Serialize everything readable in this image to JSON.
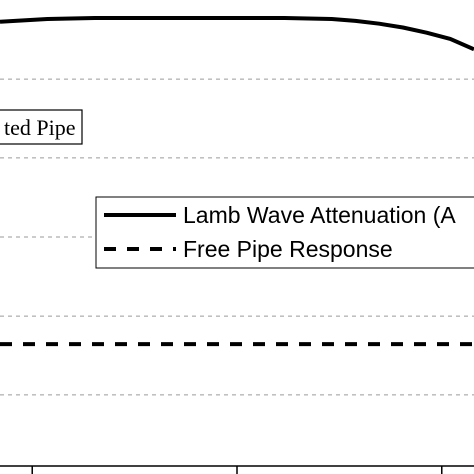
{
  "chart_data": {
    "type": "line",
    "grid": "horizontal dashed",
    "annotation": "ted Pipe",
    "legend_placement": "center-right",
    "series": [
      {
        "name": "Lamb Wave Attenuation (A",
        "style": "solid",
        "color": "#000000",
        "x": [
          0,
          0.05,
          0.1,
          0.2,
          0.3,
          0.4,
          0.5,
          0.6,
          0.7,
          0.75,
          0.8,
          0.85,
          0.9,
          0.95,
          1.0
        ],
        "y": [
          0.954,
          0.957,
          0.96,
          0.962,
          0.962,
          0.962,
          0.962,
          0.962,
          0.96,
          0.956,
          0.95,
          0.942,
          0.931,
          0.918,
          0.896
        ]
      },
      {
        "name": "Free Pipe Response",
        "style": "dashed",
        "color": "#000000",
        "x": [
          0,
          1.0
        ],
        "y": [
          0.274,
          0.274
        ]
      }
    ],
    "yticks": [
      0.833,
      0.667,
      0.5,
      0.333,
      0.167
    ],
    "xticks": [
      0.068,
      0.5,
      0.932
    ],
    "xlim": [
      0,
      1
    ],
    "ylim": [
      0,
      1
    ]
  }
}
